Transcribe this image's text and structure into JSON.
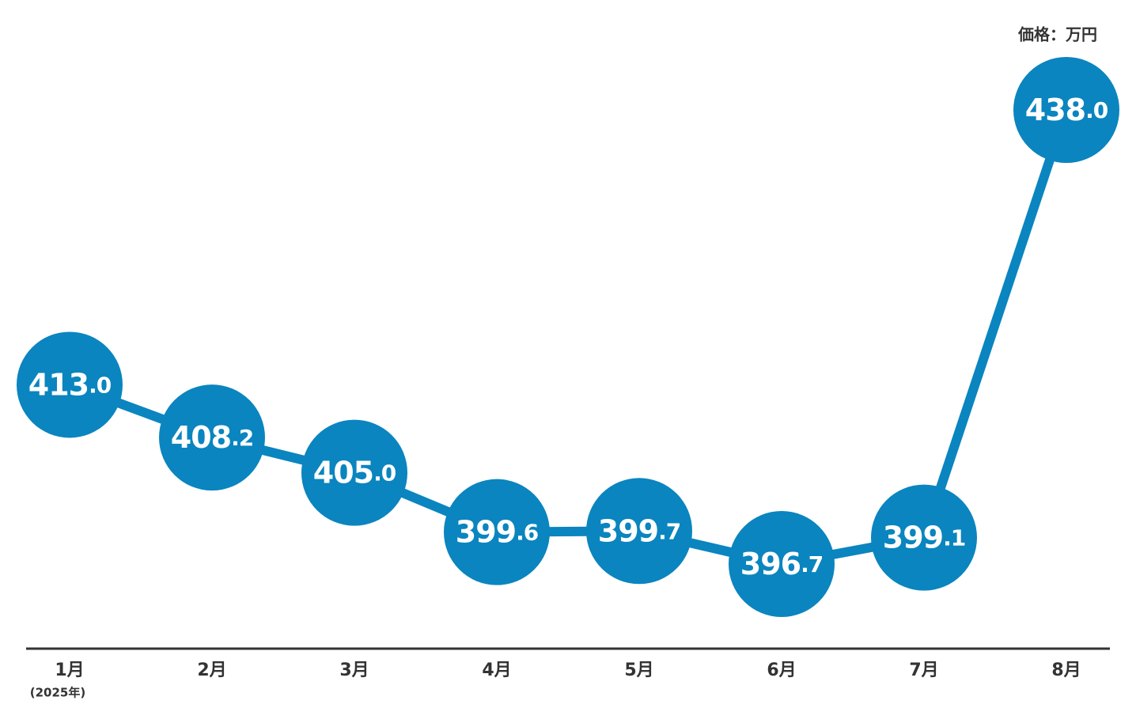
{
  "chart_data": {
    "type": "line",
    "unit_label": "価格：万円",
    "categories": [
      "1月",
      "2月",
      "3月",
      "4月",
      "5月",
      "6月",
      "7月",
      "8月"
    ],
    "category_note": "(2025年)",
    "values": [
      413.0,
      408.2,
      405.0,
      399.6,
      399.7,
      396.7,
      399.1,
      438.0
    ],
    "value_labels": [
      "413.0",
      "408.2",
      "405.0",
      "399.6",
      "399.7",
      "396.7",
      "399.1",
      "438.0"
    ],
    "color": "#0a85bf",
    "ylim": [
      389,
      448
    ]
  }
}
